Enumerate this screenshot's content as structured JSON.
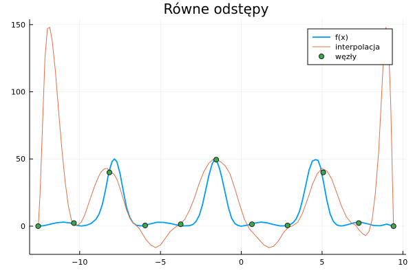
{
  "chart_data": {
    "type": "line",
    "title": "Równe odstępy",
    "xlabel": "",
    "ylabel": "",
    "xlim": [
      -13.1,
      10.2
    ],
    "ylim": [
      -21,
      154
    ],
    "xticks": [
      -10,
      -5,
      0,
      5,
      10
    ],
    "yticks": [
      0,
      50,
      100,
      150
    ],
    "xtick_labels": [
      "−10",
      "−5",
      "0",
      "5",
      "10"
    ],
    "ytick_labels": [
      "0",
      "50",
      "100",
      "150"
    ],
    "grid": true,
    "legend_position": "top-right",
    "colors": {
      "fx": "#009AFA",
      "interp": "#E26F46",
      "nodes": "#3EA44E"
    },
    "series": [
      {
        "name": "f(x)",
        "kind": "line",
        "color": "#009AFA",
        "x": [
          -12.56,
          -12.2,
          -11.8,
          -11.4,
          -11.0,
          -10.6,
          -10.4,
          -10.2,
          -9.9,
          -9.6,
          -9.3,
          -9.0,
          -8.8,
          -8.6,
          -8.4,
          -8.2,
          -8.0,
          -7.85,
          -7.7,
          -7.5,
          -7.3,
          -7.1,
          -6.9,
          -6.7,
          -6.5,
          -6.2,
          -6.0,
          -5.6,
          -5.2,
          -4.8,
          -4.4,
          -4.0,
          -3.6,
          -3.2,
          -3.0,
          -2.8,
          -2.6,
          -2.4,
          -2.2,
          -2.0,
          -1.8,
          -1.65,
          -1.5,
          -1.35,
          -1.2,
          -1.0,
          -0.8,
          -0.6,
          -0.4,
          -0.2,
          0.0,
          0.4,
          0.8,
          1.2,
          1.6,
          2.0,
          2.4,
          2.8,
          3.0,
          3.2,
          3.4,
          3.6,
          3.8,
          4.0,
          4.2,
          4.4,
          4.6,
          4.75,
          4.9,
          5.1,
          5.3,
          5.5,
          5.7,
          5.9,
          6.1,
          6.3,
          6.6,
          7.0,
          7.4,
          7.8,
          8.2,
          8.6,
          9.0,
          9.42
        ],
        "values": [
          0,
          0.4,
          1.5,
          2.6,
          3.0,
          2.4,
          1.6,
          0.7,
          0.1,
          0.6,
          2.0,
          5.0,
          9.0,
          16.0,
          27.0,
          40.0,
          48.0,
          50.0,
          48.0,
          39.0,
          26.0,
          14.0,
          6.5,
          2.5,
          0.7,
          0.2,
          0.5,
          1.8,
          2.9,
          2.8,
          2.0,
          0.9,
          0.2,
          0.4,
          1.2,
          3.5,
          8.0,
          16.0,
          27.0,
          38.0,
          46.5,
          49.5,
          48.0,
          43.0,
          36.0,
          25.0,
          14.0,
          6.0,
          2.0,
          0.5,
          0.0,
          0.8,
          2.2,
          3.0,
          2.5,
          1.2,
          0.2,
          0.3,
          1.0,
          2.5,
          5.5,
          11.0,
          20.0,
          31.0,
          42.0,
          48.5,
          49.5,
          49.0,
          44.0,
          32.0,
          19.0,
          9.0,
          3.5,
          1.0,
          0.2,
          0.3,
          1.2,
          2.6,
          2.9,
          1.8,
          0.5,
          0.3,
          1.5,
          0
        ]
      },
      {
        "name": "interpolacja",
        "kind": "line",
        "color": "#E26F46",
        "x": [
          -12.56,
          -12.45,
          -12.3,
          -12.15,
          -12.0,
          -11.85,
          -11.7,
          -11.5,
          -11.3,
          -11.1,
          -10.9,
          -10.7,
          -10.5,
          -10.3,
          -10.1,
          -9.9,
          -9.7,
          -9.5,
          -9.3,
          -9.1,
          -8.9,
          -8.7,
          -8.5,
          -8.3,
          -8.1,
          -7.9,
          -7.7,
          -7.5,
          -7.3,
          -7.1,
          -6.9,
          -6.7,
          -6.5,
          -6.3,
          -6.1,
          -5.9,
          -5.6,
          -5.3,
          -5.0,
          -4.7,
          -4.4,
          -4.1,
          -3.8,
          -3.5,
          -3.2,
          -2.9,
          -2.6,
          -2.3,
          -2.0,
          -1.7,
          -1.5,
          -1.3,
          -1.0,
          -0.7,
          -0.4,
          -0.1,
          0.2,
          0.5,
          0.8,
          1.1,
          1.4,
          1.7,
          2.0,
          2.3,
          2.6,
          2.9,
          3.2,
          3.5,
          3.8,
          4.1,
          4.4,
          4.7,
          5.0,
          5.3,
          5.6,
          5.9,
          6.2,
          6.5,
          6.8,
          7.1,
          7.3,
          7.5,
          7.7,
          7.9,
          8.1,
          8.3,
          8.5,
          8.65,
          8.8,
          8.95,
          9.1,
          9.25,
          9.42
        ],
        "values": [
          0,
          25,
          75,
          125,
          147,
          148,
          138,
          115,
          85,
          57,
          33,
          15,
          4,
          0.5,
          1,
          3,
          8,
          15,
          22,
          29,
          35,
          40,
          42.5,
          43,
          40,
          39,
          35,
          28,
          20,
          12,
          6,
          2.5,
          0.5,
          -2,
          -6,
          -10,
          -14,
          -16,
          -14,
          -9,
          -4,
          -1,
          1.5,
          5,
          12,
          21,
          32,
          41,
          47,
          50,
          49.5,
          48,
          45,
          39,
          28,
          16,
          5,
          -2,
          -6,
          -10,
          -14,
          -16,
          -15,
          -11,
          -5,
          -1,
          0.5,
          3,
          10,
          20,
          31,
          39,
          43,
          41,
          35,
          25,
          15,
          7,
          2.5,
          0.5,
          -3,
          -5.5,
          -7,
          -4,
          5,
          25,
          55,
          90,
          125,
          148,
          140,
          90,
          0
        ]
      },
      {
        "name": "węzły",
        "kind": "scatter",
        "color": "#3EA44E",
        "x": [
          -12.57,
          -10.36,
          -8.16,
          -5.95,
          -3.75,
          -1.55,
          0.66,
          2.86,
          5.07,
          7.27,
          9.42
        ],
        "values": [
          0,
          2.3,
          40,
          0.5,
          1.4,
          49.5,
          1.4,
          0.5,
          40,
          2.3,
          0
        ]
      }
    ]
  }
}
